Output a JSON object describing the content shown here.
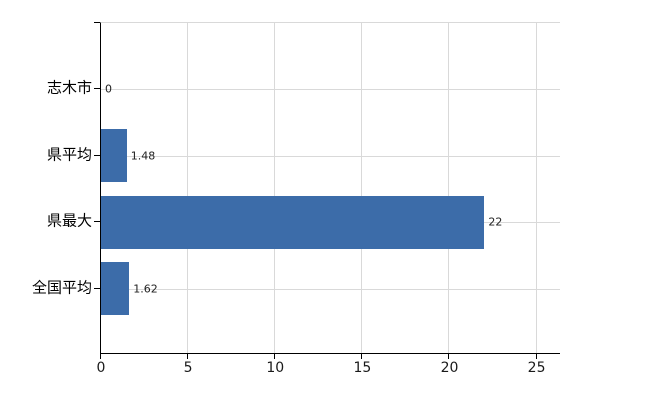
{
  "chart_data": {
    "type": "bar",
    "orientation": "horizontal",
    "title": "",
    "xlabel": "",
    "ylabel": "",
    "categories": [
      "志木市",
      "県平均",
      "県最大",
      "全国平均"
    ],
    "values": [
      0,
      1.48,
      22,
      1.62
    ],
    "value_labels": [
      "0",
      "1.48",
      "22",
      "1.62"
    ],
    "x_ticks": [
      0,
      5,
      10,
      15,
      20,
      25
    ],
    "xlim": [
      0,
      26.4
    ],
    "grid": true,
    "legend": false,
    "bar_color": "#3c6ca9",
    "grid_color": "#d9d9d9",
    "axis_color": "#000000",
    "background_color": "#ffffff"
  }
}
